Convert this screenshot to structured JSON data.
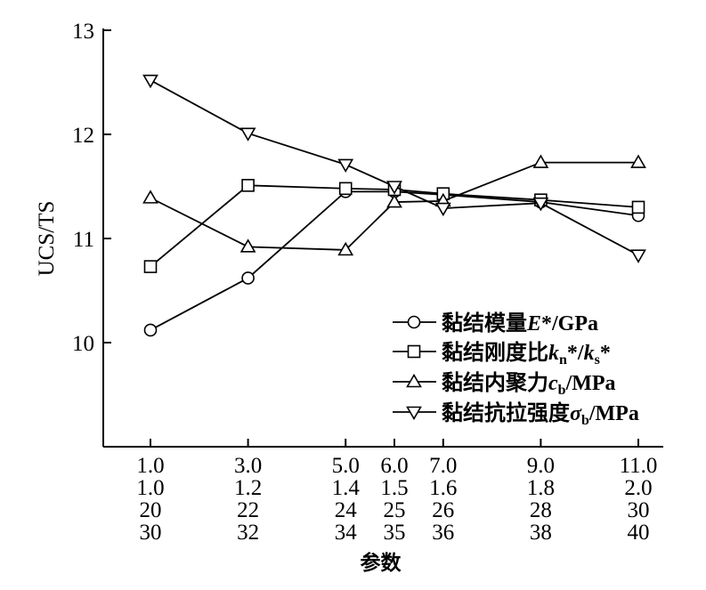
{
  "chart_data": {
    "type": "line",
    "ylabel": "UCS/TS",
    "xlabel": "参数",
    "ylim": [
      9.0,
      13.0
    ],
    "yticks": [
      "10",
      "11",
      "12",
      "13"
    ],
    "x_positions": [
      1,
      3,
      5,
      6,
      7,
      9,
      11
    ],
    "x_tick_rows": [
      [
        "1.0",
        "3.0",
        "5.0",
        "6.0",
        "7.0",
        "9.0",
        "11.0"
      ],
      [
        "1.0",
        "1.2",
        "1.4",
        "1.5",
        "1.6",
        "1.8",
        "2.0"
      ],
      [
        "20",
        "22",
        "24",
        "25",
        "26",
        "28",
        "30"
      ],
      [
        "30",
        "32",
        "34",
        "35",
        "36",
        "38",
        "40"
      ]
    ],
    "legend_position": "lower-right",
    "series": [
      {
        "marker": "circle",
        "legend": {
          "prefix": "黏结模量",
          "var": "E",
          "sub": "",
          "suffix": "*/GPa"
        },
        "values": [
          10.12,
          10.62,
          11.45,
          11.45,
          11.42,
          11.35,
          11.22
        ]
      },
      {
        "marker": "square",
        "legend": {
          "prefix": "黏结刚度比",
          "var": "k",
          "sub": "n",
          "suffix": "*/",
          "var2": "k",
          "sub2": "s",
          "suffix2": "*"
        },
        "values": [
          10.73,
          11.51,
          11.48,
          11.47,
          11.43,
          11.37,
          11.3
        ]
      },
      {
        "marker": "triangle-up",
        "legend": {
          "prefix": "黏结内聚力",
          "var": "c",
          "sub": "b",
          "suffix": "/MPa"
        },
        "values": [
          11.39,
          10.92,
          10.89,
          11.35,
          11.36,
          11.73,
          11.73
        ]
      },
      {
        "marker": "triangle-down",
        "legend": {
          "prefix": "黏结抗拉强度",
          "var": "σ",
          "sub": "b",
          "suffix": "/MPa"
        },
        "values": [
          12.52,
          12.01,
          11.71,
          11.5,
          11.29,
          11.34,
          10.84
        ]
      }
    ]
  }
}
